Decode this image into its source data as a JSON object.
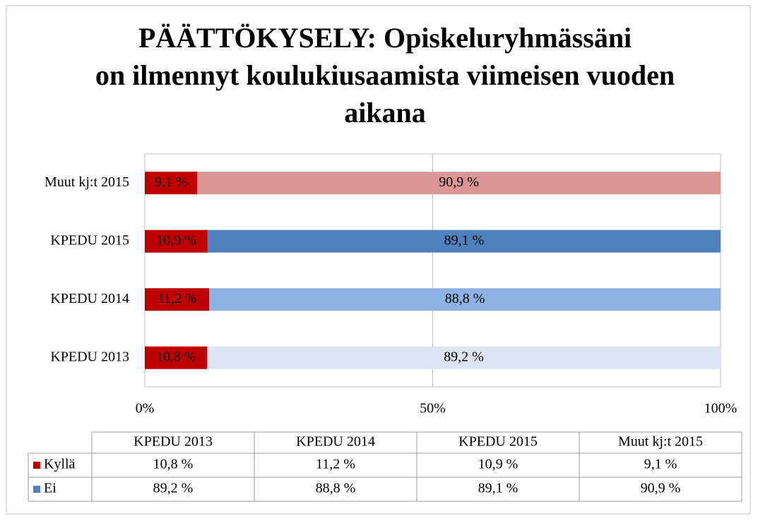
{
  "chart_data": {
    "type": "stacked_bar_horizontal",
    "title": "PÄÄTTÖKYSELY: Opiskeluryhmässäni on ilmennyt koulukiusaamista viimeisen vuoden aikana",
    "categories": [
      "KPEDU 2013",
      "KPEDU 2014",
      "KPEDU 2015",
      "Muut kj:t 2015"
    ],
    "series": [
      {
        "name": "Kyllä",
        "color": "#c00000",
        "values": [
          10.8,
          11.2,
          10.9,
          9.1
        ],
        "value_labels": [
          "10,8 %",
          "11,2 %",
          "10,9 %",
          "9,1 %"
        ]
      },
      {
        "name": "Ei",
        "color": "#4f81bd",
        "colors": [
          "#dce6f2",
          "#8db4e2",
          "#4f81bd",
          "#d99694"
        ],
        "values": [
          89.2,
          88.8,
          89.1,
          90.9
        ],
        "value_labels": [
          "89,2 %",
          "88,8 %",
          "89,1 %",
          "90,9 %"
        ]
      }
    ],
    "xlim": [
      0,
      100
    ],
    "xticks": [
      {
        "value": 0,
        "label": "0%"
      },
      {
        "value": 50,
        "label": "50%"
      },
      {
        "value": 100,
        "label": "100%"
      }
    ],
    "grid": true,
    "data_table": true
  }
}
